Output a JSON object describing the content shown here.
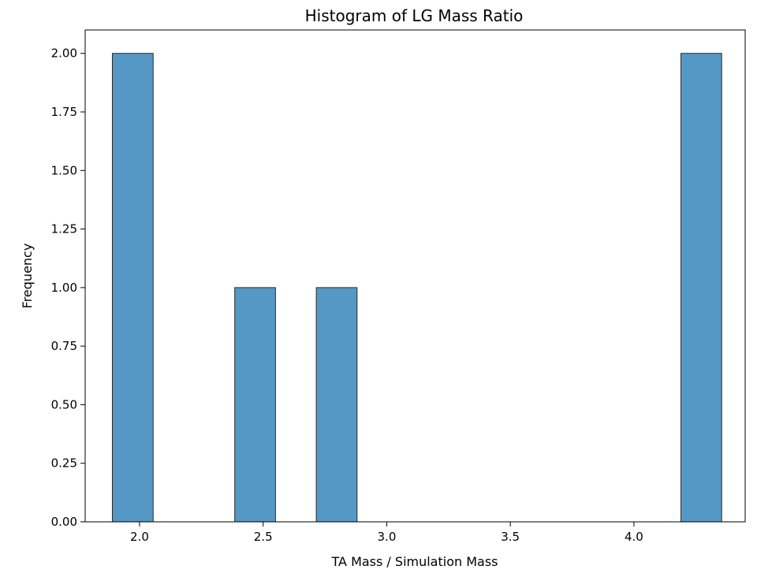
{
  "chart_data": {
    "type": "bar",
    "title": "Histogram of LG Mass Ratio",
    "xlabel": "TA Mass / Simulation Mass",
    "ylabel": "Frequency",
    "xlim": [
      1.78,
      4.45
    ],
    "ylim": [
      0,
      2.1
    ],
    "grid": false,
    "bins": [
      {
        "x0": 1.89,
        "x1": 2.055,
        "count": 2
      },
      {
        "x0": 2.385,
        "x1": 2.55,
        "count": 1
      },
      {
        "x0": 2.715,
        "x1": 2.88,
        "count": 1
      },
      {
        "x0": 4.19,
        "x1": 4.355,
        "count": 2
      }
    ],
    "xticks": [
      "2.0",
      "2.5",
      "3.0",
      "3.5",
      "4.0"
    ],
    "yticks": [
      "0.00",
      "0.25",
      "0.50",
      "0.75",
      "1.00",
      "1.25",
      "1.50",
      "1.75",
      "2.00"
    ],
    "bar_color": "#5598c6",
    "edge_color": "#2b2b2b"
  }
}
